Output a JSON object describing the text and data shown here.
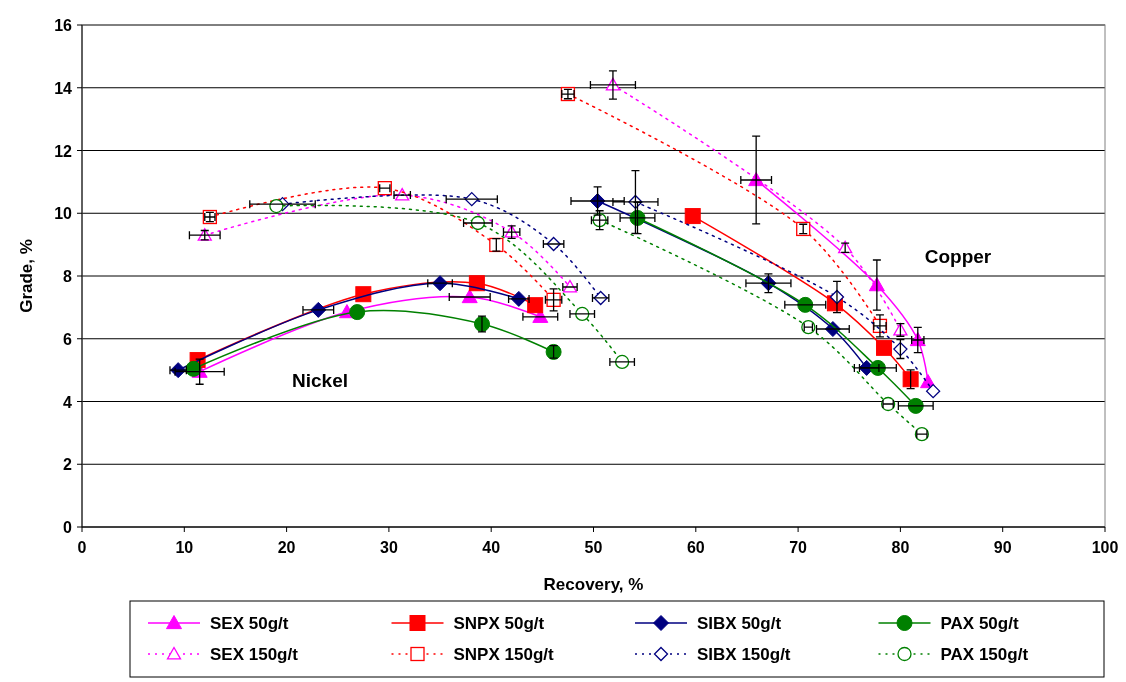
{
  "chart_data": {
    "type": "line",
    "xlabel": "Recovery, %",
    "ylabel": "Grade, %",
    "xlim": [
      0,
      100
    ],
    "xticks": [
      0,
      10,
      20,
      30,
      40,
      50,
      60,
      70,
      80,
      90,
      100
    ],
    "ylim": [
      0,
      16
    ],
    "yticks": [
      0,
      2,
      4,
      6,
      8,
      10,
      12,
      14,
      16
    ],
    "grid": "y",
    "legend": "bottom",
    "annotations": [
      "Nickel",
      "Copper"
    ],
    "series": [
      {
        "name": "SEX 50g/t",
        "color": "#ff00ff",
        "marker": "triangle",
        "line_style": "solid",
        "x": [
          11.5,
          25.9,
          37.9,
          44.8,
          null,
          65.9,
          77.7,
          81.7,
          82.7
        ],
        "values": [
          4.95,
          6.85,
          7.33,
          6.7,
          null,
          11.06,
          7.71,
          5.96,
          4.62
        ],
        "xerrors": [
          2.4,
          null,
          2,
          1.7,
          null,
          1.5,
          null,
          0.6,
          null
        ],
        "errors": [
          0.4,
          null,
          null,
          null,
          null,
          1.4,
          0.8,
          0.4,
          null
        ]
      },
      {
        "name": "SNPX 50g/t",
        "color": "#ff0000",
        "marker": "square",
        "line_style": "solid",
        "x": [
          11.3,
          27.5,
          38.6,
          44.3,
          null,
          59.7,
          73.6,
          78.4,
          81.0
        ],
        "values": [
          5.32,
          7.42,
          7.77,
          7.07,
          null,
          9.91,
          7.13,
          5.71,
          4.71
        ],
        "xerrors": [
          null,
          null,
          null,
          null,
          null,
          null,
          null,
          null,
          null
        ],
        "errors": [
          null,
          null,
          null,
          null,
          null,
          null,
          null,
          null,
          0.3
        ]
      },
      {
        "name": "SIBX 50g/t",
        "color": "#000080",
        "marker": "diamond",
        "line_style": "solid",
        "x": [
          9.4,
          23.1,
          35.0,
          42.7,
          null,
          50.4,
          67.1,
          73.4,
          76.7
        ],
        "values": [
          5.0,
          6.92,
          7.77,
          7.27,
          null,
          10.39,
          7.77,
          6.31,
          5.07
        ],
        "xerrors": [
          0.8,
          1.5,
          1.2,
          1,
          null,
          2.6,
          2.2,
          1.6,
          1.2
        ],
        "errors": [
          null,
          null,
          null,
          null,
          null,
          0.45,
          0.3,
          null,
          null
        ]
      },
      {
        "name": "PAX 50g/t",
        "color": "#008000",
        "marker": "circle",
        "line_style": "solid",
        "x": [
          10.9,
          26.9,
          39.1,
          46.1,
          null,
          54.3,
          70.7,
          77.8,
          81.5
        ],
        "values": [
          5.04,
          6.85,
          6.47,
          5.58,
          null,
          9.85,
          7.08,
          5.07,
          3.86
        ],
        "xerrors": [
          null,
          null,
          null,
          null,
          null,
          1.7,
          2,
          1.8,
          1.7
        ],
        "errors": [
          null,
          null,
          0.25,
          0.2,
          null,
          0.5,
          null,
          null,
          null
        ]
      },
      {
        "name": "SEX 150g/t",
        "color": "#ff00ff",
        "marker": "triangle",
        "line_style": "dotted",
        "x": [
          12.0,
          31.3,
          42.0,
          47.7,
          null,
          51.9,
          74.6,
          80.0
        ],
        "values": [
          9.3,
          10.58,
          9.4,
          7.65,
          null,
          14.09,
          8.9,
          6.28
        ],
        "xerrors": [
          1.5,
          0.8,
          0.8,
          0.7,
          null,
          2.2,
          null,
          null
        ],
        "errors": [
          0.15,
          null,
          0.2,
          null,
          null,
          0.45,
          0.15,
          0.2
        ]
      },
      {
        "name": "SNPX 150g/t",
        "color": "#ff0000",
        "marker": "square",
        "line_style": "dotted",
        "x": [
          12.5,
          29.6,
          40.5,
          46.1,
          null,
          47.5,
          70.5,
          78.0
        ],
        "values": [
          9.88,
          10.8,
          8.99,
          7.24,
          null,
          13.8,
          9.5,
          6.41
        ],
        "xerrors": [
          0.5,
          0.5,
          null,
          0.8,
          null,
          0.6,
          null,
          0.6
        ],
        "errors": [
          0.15,
          null,
          0.2,
          0.35,
          null,
          0.15,
          0.15,
          0.35
        ]
      },
      {
        "name": "SIBX 150g/t",
        "color": "#000080",
        "marker": "diamond",
        "line_style": "dotted",
        "x": [
          19.6,
          38.1,
          46.1,
          50.7,
          null,
          54.1,
          73.8,
          80.0,
          83.2
        ],
        "values": [
          10.29,
          10.45,
          9.02,
          7.3,
          null,
          10.36,
          7.33,
          5.67,
          4.33
        ],
        "xerrors": [
          3.2,
          2.5,
          1,
          0.8,
          null,
          2.2,
          null,
          null,
          null
        ],
        "errors": [
          null,
          null,
          null,
          null,
          null,
          1.0,
          0.5,
          0.3,
          null
        ]
      },
      {
        "name": "PAX 150g/t",
        "color": "#008000",
        "marker": "circle",
        "line_style": "dotted",
        "x": [
          19.0,
          38.7,
          48.9,
          52.8,
          null,
          50.6,
          71.0,
          78.8,
          82.1
        ],
        "values": [
          10.23,
          9.69,
          6.79,
          5.26,
          null,
          9.78,
          6.37,
          3.92,
          2.96
        ],
        "xerrors": [
          null,
          1.4,
          1.2,
          1.2,
          null,
          0.8,
          0.4,
          0.5,
          0.5
        ],
        "errors": [
          null,
          null,
          null,
          null,
          null,
          0.3,
          null,
          null,
          null
        ]
      }
    ]
  }
}
